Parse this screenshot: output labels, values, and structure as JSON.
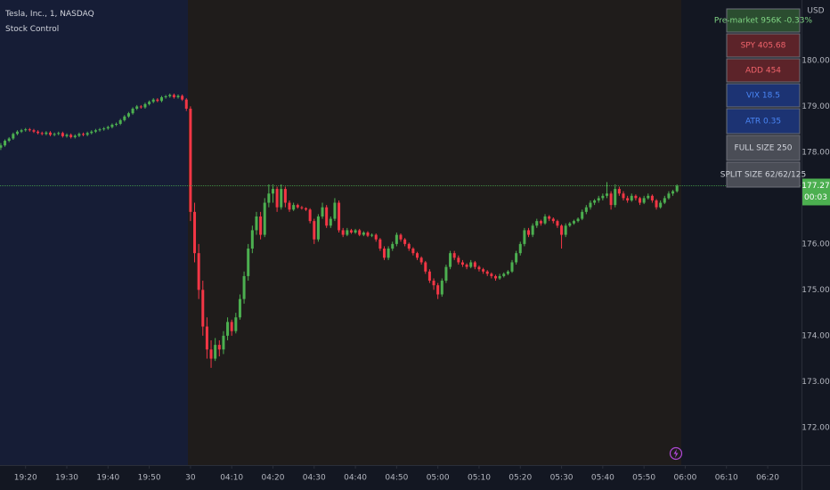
{
  "chart_data": {
    "type": "candlestick",
    "title": "Tesla, Inc., 1, NASDAQ",
    "subtitle": "Stock Control",
    "y_axis_label": "USD",
    "up_color": "#4caf50",
    "down_color": "#f23645",
    "grid": false,
    "last_price": {
      "value": 177.27,
      "label": "177.27"
    },
    "countdown": "00:03",
    "panel": [
      "Pre-market 956K -0.33%",
      "SPY 405.68",
      "ADD 454",
      "VIX 18.5",
      "ATR 0.35",
      "FULL SIZE 250",
      "SPLIT SIZE 62/62/125"
    ],
    "xlim": [
      -0.2,
      194.2
    ],
    "xticks": [
      {
        "value": 6,
        "label": "19:20"
      },
      {
        "value": 16,
        "label": "19:30"
      },
      {
        "value": 26,
        "label": "19:40"
      },
      {
        "value": 36,
        "label": "19:50"
      },
      {
        "value": 46,
        "label": "30"
      },
      {
        "value": 56,
        "label": "04:10"
      },
      {
        "value": 66,
        "label": "04:20"
      },
      {
        "value": 76,
        "label": "04:30"
      },
      {
        "value": 86,
        "label": "04:40"
      },
      {
        "value": 96,
        "label": "04:50"
      },
      {
        "value": 106,
        "label": "05:00"
      },
      {
        "value": 116,
        "label": "05:10"
      },
      {
        "value": 126,
        "label": "05:20"
      },
      {
        "value": 136,
        "label": "05:30"
      },
      {
        "value": 146,
        "label": "05:40"
      },
      {
        "value": 156,
        "label": "05:50"
      },
      {
        "value": 166,
        "label": "06:00"
      },
      {
        "value": 176,
        "label": "06:10"
      },
      {
        "value": 186,
        "label": "06:20"
      }
    ],
    "ylim": [
      171.18,
      181.32
    ],
    "yticks": [
      {
        "value": 172,
        "label": "172.00"
      },
      {
        "value": 173,
        "label": "173.00"
      },
      {
        "value": 174,
        "label": "174.00"
      },
      {
        "value": 175,
        "label": "175.00"
      },
      {
        "value": 176,
        "label": "176.00"
      },
      {
        "value": 177,
        "label": "177.00"
      },
      {
        "value": 178,
        "label": "178.00"
      },
      {
        "value": 179,
        "label": "179.00"
      },
      {
        "value": 180,
        "label": "180.00"
      }
    ],
    "ohlc": [
      [
        178.1,
        178.2,
        178.05,
        178.15
      ],
      [
        178.15,
        178.28,
        178.12,
        178.25
      ],
      [
        178.25,
        178.33,
        178.22,
        178.3
      ],
      [
        178.3,
        178.43,
        178.27,
        178.4
      ],
      [
        178.4,
        178.48,
        178.37,
        178.45
      ],
      [
        178.45,
        178.51,
        178.42,
        178.48
      ],
      [
        178.48,
        178.53,
        178.45,
        178.5
      ],
      [
        178.5,
        178.53,
        178.45,
        178.48
      ],
      [
        178.48,
        178.51,
        178.42,
        178.45
      ],
      [
        178.45,
        178.48,
        178.39,
        178.42
      ],
      [
        178.42,
        178.45,
        178.37,
        178.4
      ],
      [
        178.4,
        178.46,
        178.37,
        178.43
      ],
      [
        178.43,
        178.46,
        178.35,
        178.38
      ],
      [
        178.38,
        178.43,
        178.35,
        178.4
      ],
      [
        178.4,
        178.45,
        178.37,
        178.42
      ],
      [
        178.42,
        178.45,
        178.32,
        178.35
      ],
      [
        178.35,
        178.41,
        178.32,
        178.38
      ],
      [
        178.38,
        178.41,
        178.3,
        178.33
      ],
      [
        178.33,
        178.39,
        178.3,
        178.36
      ],
      [
        178.36,
        178.43,
        178.33,
        178.4
      ],
      [
        178.4,
        178.43,
        178.35,
        178.38
      ],
      [
        178.38,
        178.45,
        178.35,
        178.42
      ],
      [
        178.42,
        178.48,
        178.39,
        178.45
      ],
      [
        178.45,
        178.51,
        178.42,
        178.48
      ],
      [
        178.48,
        178.53,
        178.45,
        178.5
      ],
      [
        178.5,
        178.55,
        178.47,
        178.52
      ],
      [
        178.52,
        178.58,
        178.49,
        178.55
      ],
      [
        178.55,
        178.63,
        178.52,
        178.6
      ],
      [
        178.6,
        178.65,
        178.57,
        178.62
      ],
      [
        178.62,
        178.73,
        178.59,
        178.7
      ],
      [
        178.7,
        178.81,
        178.67,
        178.78
      ],
      [
        178.78,
        178.88,
        178.75,
        178.85
      ],
      [
        178.85,
        178.98,
        178.82,
        178.95
      ],
      [
        178.95,
        179.03,
        178.92,
        179.0
      ],
      [
        179.0,
        179.03,
        178.95,
        178.98
      ],
      [
        178.98,
        179.08,
        178.95,
        179.05
      ],
      [
        179.05,
        179.13,
        179.02,
        179.1
      ],
      [
        179.1,
        179.18,
        179.07,
        179.15
      ],
      [
        179.15,
        179.18,
        179.09,
        179.12
      ],
      [
        179.12,
        179.23,
        179.09,
        179.2
      ],
      [
        179.2,
        179.25,
        179.17,
        179.22
      ],
      [
        179.22,
        179.28,
        179.19,
        179.25
      ],
      [
        179.25,
        179.28,
        179.17,
        179.2
      ],
      [
        179.2,
        179.26,
        179.17,
        179.23
      ],
      [
        179.23,
        179.26,
        179.12,
        179.15
      ],
      [
        179.15,
        179.18,
        178.9,
        178.95
      ],
      [
        178.95,
        179.0,
        176.5,
        176.7
      ],
      [
        176.7,
        176.9,
        175.6,
        175.8
      ],
      [
        175.8,
        176.0,
        174.8,
        175.0
      ],
      [
        175.0,
        175.2,
        174.0,
        174.2
      ],
      [
        174.2,
        174.4,
        173.5,
        173.7
      ],
      [
        173.7,
        173.9,
        173.3,
        173.5
      ],
      [
        173.5,
        173.95,
        173.45,
        173.8
      ],
      [
        173.8,
        173.9,
        173.55,
        173.7
      ],
      [
        173.7,
        174.1,
        173.6,
        174.0
      ],
      [
        174.0,
        174.4,
        173.9,
        174.3
      ],
      [
        174.3,
        174.35,
        174.0,
        174.1
      ],
      [
        174.1,
        174.5,
        174.05,
        174.4
      ],
      [
        174.4,
        174.9,
        174.35,
        174.8
      ],
      [
        174.8,
        175.4,
        174.7,
        175.3
      ],
      [
        175.3,
        176.0,
        175.2,
        175.9
      ],
      [
        175.9,
        176.4,
        175.8,
        176.3
      ],
      [
        176.3,
        176.7,
        176.2,
        176.6
      ],
      [
        176.6,
        176.7,
        176.1,
        176.2
      ],
      [
        176.2,
        177.0,
        176.15,
        176.9
      ],
      [
        176.9,
        177.3,
        176.8,
        177.1
      ],
      [
        177.1,
        177.3,
        176.9,
        177.2
      ],
      [
        177.2,
        177.25,
        176.7,
        176.8
      ],
      [
        176.8,
        177.3,
        176.75,
        177.2
      ],
      [
        177.2,
        177.25,
        176.8,
        176.9
      ],
      [
        176.9,
        176.95,
        176.7,
        176.75
      ],
      [
        176.75,
        176.9,
        176.72,
        176.85
      ],
      [
        176.85,
        176.88,
        176.77,
        176.8
      ],
      [
        176.8,
        176.83,
        176.75,
        176.78
      ],
      [
        176.78,
        176.8,
        176.72,
        176.75
      ],
      [
        176.75,
        176.78,
        176.45,
        176.5
      ],
      [
        176.5,
        176.55,
        176.0,
        176.1
      ],
      [
        176.1,
        176.65,
        176.05,
        176.6
      ],
      [
        176.6,
        176.9,
        176.55,
        176.8
      ],
      [
        176.8,
        176.85,
        176.35,
        176.4
      ],
      [
        176.4,
        176.6,
        176.35,
        176.55
      ],
      [
        176.55,
        177.0,
        176.5,
        176.9
      ],
      [
        176.9,
        176.95,
        176.25,
        176.3
      ],
      [
        176.3,
        176.35,
        176.15,
        176.2
      ],
      [
        176.2,
        176.35,
        176.17,
        176.3
      ],
      [
        176.3,
        176.33,
        176.22,
        176.25
      ],
      [
        176.25,
        176.33,
        176.22,
        176.3
      ],
      [
        176.3,
        176.33,
        176.17,
        176.2
      ],
      [
        176.2,
        176.28,
        176.17,
        176.25
      ],
      [
        176.25,
        176.28,
        176.15,
        176.18
      ],
      [
        176.18,
        176.23,
        176.15,
        176.2
      ],
      [
        176.2,
        176.23,
        176.05,
        176.1
      ],
      [
        176.1,
        176.13,
        175.85,
        175.9
      ],
      [
        175.9,
        175.95,
        175.65,
        175.7
      ],
      [
        175.7,
        175.95,
        175.65,
        175.9
      ],
      [
        175.9,
        176.05,
        175.85,
        176.0
      ],
      [
        176.0,
        176.25,
        175.95,
        176.2
      ],
      [
        176.2,
        176.23,
        176.05,
        176.1
      ],
      [
        176.1,
        176.13,
        175.95,
        176.0
      ],
      [
        176.0,
        176.03,
        175.85,
        175.9
      ],
      [
        175.9,
        175.93,
        175.75,
        175.8
      ],
      [
        175.8,
        175.83,
        175.65,
        175.7
      ],
      [
        175.7,
        175.73,
        175.55,
        175.6
      ],
      [
        175.6,
        175.63,
        175.35,
        175.4
      ],
      [
        175.4,
        175.45,
        175.15,
        175.2
      ],
      [
        175.2,
        175.25,
        175.0,
        175.1
      ],
      [
        175.1,
        175.15,
        174.8,
        174.9
      ],
      [
        174.9,
        175.25,
        174.85,
        175.2
      ],
      [
        175.2,
        175.55,
        175.15,
        175.5
      ],
      [
        175.5,
        175.85,
        175.45,
        175.8
      ],
      [
        175.8,
        175.85,
        175.65,
        175.7
      ],
      [
        175.7,
        175.75,
        175.55,
        175.6
      ],
      [
        175.6,
        175.65,
        175.5,
        175.55
      ],
      [
        175.55,
        175.58,
        175.45,
        175.5
      ],
      [
        175.5,
        175.65,
        175.47,
        175.6
      ],
      [
        175.6,
        175.63,
        175.45,
        175.5
      ],
      [
        175.5,
        175.53,
        175.4,
        175.45
      ],
      [
        175.45,
        175.48,
        175.35,
        175.4
      ],
      [
        175.4,
        175.43,
        175.3,
        175.35
      ],
      [
        175.35,
        175.38,
        175.25,
        175.3
      ],
      [
        175.3,
        175.33,
        175.2,
        175.25
      ],
      [
        175.25,
        175.35,
        175.22,
        175.3
      ],
      [
        175.3,
        175.38,
        175.27,
        175.35
      ],
      [
        175.35,
        175.43,
        175.32,
        175.4
      ],
      [
        175.4,
        175.65,
        175.37,
        175.6
      ],
      [
        175.6,
        175.85,
        175.55,
        175.8
      ],
      [
        175.8,
        176.05,
        175.75,
        176.0
      ],
      [
        176.0,
        176.35,
        175.95,
        176.3
      ],
      [
        176.3,
        176.35,
        176.15,
        176.2
      ],
      [
        176.2,
        176.45,
        176.15,
        176.4
      ],
      [
        176.4,
        176.55,
        176.35,
        176.5
      ],
      [
        176.5,
        176.53,
        176.4,
        176.45
      ],
      [
        176.45,
        176.65,
        176.42,
        176.6
      ],
      [
        176.6,
        176.63,
        176.5,
        176.55
      ],
      [
        176.55,
        176.58,
        176.45,
        176.5
      ],
      [
        176.5,
        176.53,
        176.35,
        176.4
      ],
      [
        176.4,
        176.43,
        175.9,
        176.2
      ],
      [
        176.2,
        176.45,
        176.15,
        176.4
      ],
      [
        176.4,
        176.48,
        176.37,
        176.45
      ],
      [
        176.45,
        176.53,
        176.42,
        176.5
      ],
      [
        176.5,
        176.58,
        176.47,
        176.55
      ],
      [
        176.55,
        176.75,
        176.52,
        176.7
      ],
      [
        176.7,
        176.85,
        176.65,
        176.8
      ],
      [
        176.8,
        176.95,
        176.75,
        176.9
      ],
      [
        176.9,
        176.98,
        176.85,
        176.95
      ],
      [
        176.95,
        177.05,
        176.9,
        177.0
      ],
      [
        177.0,
        177.1,
        176.95,
        177.05
      ],
      [
        177.05,
        177.35,
        177.0,
        177.1
      ],
      [
        177.1,
        177.15,
        176.75,
        176.85
      ],
      [
        176.85,
        177.3,
        176.8,
        177.2
      ],
      [
        177.2,
        177.25,
        177.05,
        177.1
      ],
      [
        177.1,
        177.15,
        176.95,
        177.0
      ],
      [
        177.0,
        177.05,
        176.9,
        176.95
      ],
      [
        176.95,
        177.1,
        176.92,
        177.05
      ],
      [
        177.05,
        177.08,
        176.95,
        177.0
      ],
      [
        177.0,
        177.03,
        176.85,
        176.9
      ],
      [
        176.9,
        177.05,
        176.87,
        177.0
      ],
      [
        177.0,
        177.1,
        176.97,
        177.05
      ],
      [
        177.05,
        177.08,
        176.9,
        176.95
      ],
      [
        176.95,
        176.98,
        176.75,
        176.8
      ],
      [
        176.8,
        176.95,
        176.77,
        176.9
      ],
      [
        176.9,
        177.05,
        176.87,
        177.0
      ],
      [
        177.0,
        177.15,
        176.97,
        177.1
      ],
      [
        177.1,
        177.18,
        177.05,
        177.15
      ],
      [
        177.15,
        177.3,
        177.12,
        177.27
      ]
    ]
  }
}
